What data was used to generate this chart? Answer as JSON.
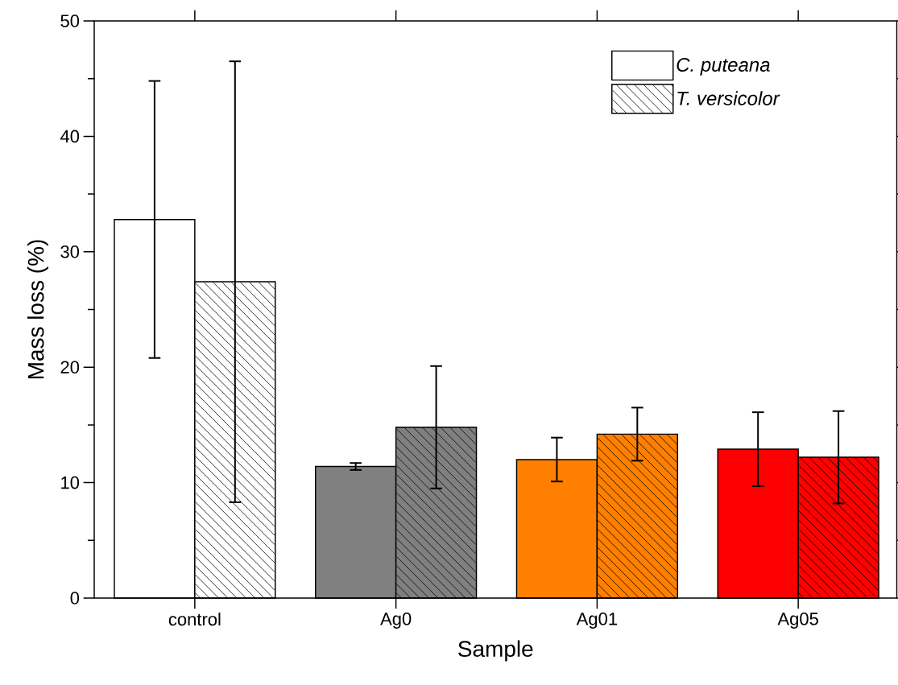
{
  "chart_data": {
    "type": "bar",
    "xlabel": "Sample",
    "ylabel": "Mass loss (%)",
    "categories": [
      "control",
      "Ag0",
      "Ag01",
      "Ag05"
    ],
    "series": [
      {
        "name": "C. puteana",
        "colors": [
          "#ffffff",
          "#808080",
          "#ff8000",
          "#ff0000"
        ],
        "values": [
          32.8,
          11.4,
          12.0,
          12.9
        ],
        "errors": [
          12.0,
          0.3,
          1.9,
          3.2
        ]
      },
      {
        "name": "T. versicolor",
        "colors": [
          "#ffffff",
          "#808080",
          "#ff8000",
          "#ff0000"
        ],
        "values": [
          27.4,
          14.8,
          14.2,
          12.2
        ],
        "errors": [
          19.1,
          5.3,
          2.3,
          4.0
        ]
      }
    ],
    "ylim": [
      0,
      50
    ],
    "yticks": [
      0,
      10,
      20,
      30,
      40,
      50
    ],
    "legend": "top right"
  }
}
